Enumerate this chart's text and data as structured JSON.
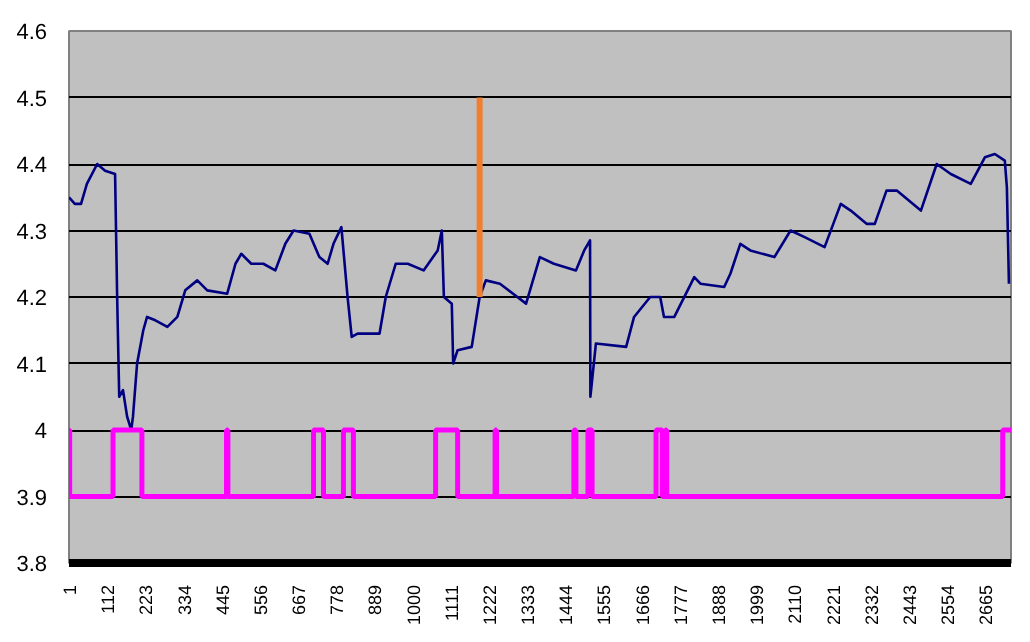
{
  "chart_data": {
    "type": "line",
    "xlim": [
      1,
      2740
    ],
    "ylim": [
      3.8,
      4.6
    ],
    "xticks": [
      1,
      112,
      223,
      334,
      445,
      556,
      667,
      778,
      889,
      1000,
      1111,
      1222,
      1333,
      1444,
      1555,
      1666,
      1777,
      1888,
      1999,
      2110,
      2221,
      2332,
      2443,
      2554,
      2665
    ],
    "yticks": [
      3.8,
      3.9,
      4,
      4.1,
      4.2,
      4.3,
      4.4,
      4.5,
      4.6
    ],
    "grid": "y",
    "series": [
      {
        "color": "#000080",
        "x": [
          1,
          18,
          36,
          53,
          83,
          106,
          135,
          141,
          147,
          158,
          170,
          182,
          187,
          199,
          217,
          228,
          252,
          287,
          316,
          339,
          374,
          403,
          461,
          485,
          502,
          531,
          566,
          601,
          630,
          654,
          700,
          729,
          753,
          770,
          793,
          811,
          823,
          840,
          904,
          922,
          951,
          986,
          1032,
          1073,
          1085,
          1091,
          1114,
          1118,
          1131,
          1172,
          1195,
          1213,
          1254,
          1330,
          1370,
          1411,
          1475,
          1499,
          1516,
          1517,
          1533,
          1621,
          1644,
          1691,
          1720,
          1731,
          1761,
          1819,
          1837,
          1906,
          1924,
          1953,
          1982,
          2052,
          2099,
          2140,
          2198,
          2245,
          2274,
          2320,
          2344,
          2378,
          2408,
          2478,
          2524,
          2565,
          2623,
          2664,
          2693,
          2722,
          2728,
          2734
        ],
        "values": [
          4.35,
          4.34,
          4.34,
          4.37,
          4.4,
          4.39,
          4.385,
          4.2,
          4.05,
          4.06,
          4.02,
          4.0,
          4.02,
          4.1,
          4.15,
          4.17,
          4.165,
          4.155,
          4.17,
          4.21,
          4.225,
          4.21,
          4.205,
          4.25,
          4.265,
          4.25,
          4.25,
          4.24,
          4.28,
          4.3,
          4.295,
          4.26,
          4.25,
          4.28,
          4.305,
          4.2,
          4.14,
          4.145,
          4.145,
          4.2,
          4.25,
          4.25,
          4.24,
          4.27,
          4.3,
          4.2,
          4.19,
          4.1,
          4.12,
          4.125,
          4.2,
          4.225,
          4.22,
          4.19,
          4.26,
          4.25,
          4.24,
          4.27,
          4.285,
          4.05,
          4.13,
          4.125,
          4.17,
          4.2,
          4.2,
          4.17,
          4.17,
          4.23,
          4.22,
          4.215,
          4.235,
          4.28,
          4.27,
          4.26,
          4.3,
          4.29,
          4.275,
          4.34,
          4.33,
          4.31,
          4.31,
          4.36,
          4.36,
          4.33,
          4.4,
          4.385,
          4.37,
          4.41,
          4.415,
          4.405,
          4.365,
          4.22
        ]
      },
      {
        "type": "step",
        "color": "#ff00ff",
        "x": [
          1,
          3,
          129,
          213,
          459,
          463,
          712,
          741,
          799,
          828,
          1067,
          1131,
          1240,
          1244,
          1469,
          1475,
          1510,
          1522,
          1708,
          1726,
          1735,
          1739,
          2716,
          2740
        ],
        "values": [
          4.0,
          3.9,
          4.0,
          3.9,
          4.0,
          3.9,
          4.0,
          3.9,
          4.0,
          3.9,
          4.0,
          3.9,
          4.0,
          3.9,
          4.0,
          3.9,
          4.0,
          3.9,
          4.0,
          3.9,
          4.0,
          3.9,
          4.0,
          4.0
        ]
      },
      {
        "type": "line",
        "color": "#f08030",
        "x": [
          1195,
          1195
        ],
        "values": [
          4.2,
          4.5
        ]
      }
    ]
  }
}
